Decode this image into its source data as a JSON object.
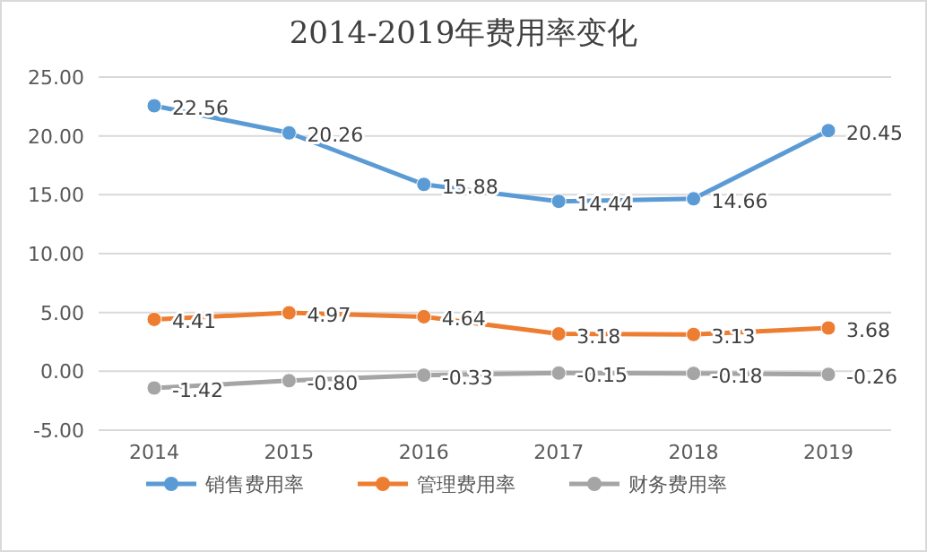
{
  "chart_data": {
    "type": "line",
    "title": "2014-2019年费用率变化",
    "categories": [
      "2014",
      "2015",
      "2016",
      "2017",
      "2018",
      "2019"
    ],
    "series": [
      {
        "name": "销售费用率",
        "color": "#5b9bd5",
        "values": [
          22.56,
          20.26,
          15.88,
          14.44,
          14.66,
          20.45
        ],
        "value_labels": [
          "22.56",
          "20.26",
          "15.88",
          "14.44",
          "14.66",
          "20.45"
        ]
      },
      {
        "name": "管理费用率",
        "color": "#ed7d31",
        "values": [
          4.41,
          4.97,
          4.64,
          3.18,
          3.13,
          3.68
        ],
        "value_labels": [
          "4.41",
          "4.97",
          "4.64",
          "3.18",
          "3.13",
          "3.68"
        ]
      },
      {
        "name": "财务费用率",
        "color": "#a5a5a5",
        "values": [
          -1.42,
          -0.8,
          -0.33,
          -0.15,
          -0.18,
          -0.26
        ],
        "value_labels": [
          "-1.42",
          "-0.80",
          "-0.33",
          "-0.15",
          "-0.18",
          "-0.26"
        ]
      }
    ],
    "ylim": [
      -5,
      25
    ],
    "yticks": [
      {
        "value": -5,
        "label": "-5.00"
      },
      {
        "value": 0,
        "label": "0.00"
      },
      {
        "value": 5,
        "label": "5.00"
      },
      {
        "value": 10,
        "label": "10.00"
      },
      {
        "value": 15,
        "label": "15.00"
      },
      {
        "value": 20,
        "label": "20.00"
      },
      {
        "value": 25,
        "label": "25.00"
      }
    ],
    "grid": "y",
    "legend": "bottom",
    "marker": "circle",
    "line_style": "solid"
  }
}
